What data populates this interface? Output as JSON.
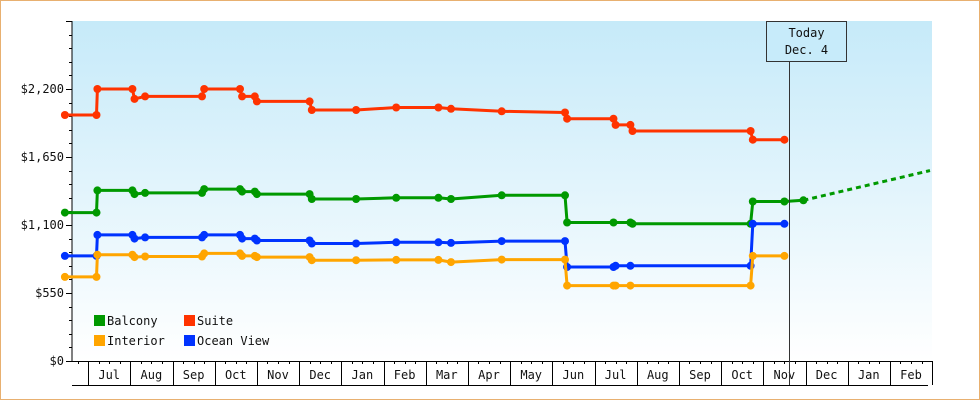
{
  "chart_data": {
    "type": "line",
    "title": "",
    "xlabel": "",
    "ylabel": "",
    "ylim": [
      0,
      2750
    ],
    "y_ticks": [
      {
        "value": 0,
        "label": "$0"
      },
      {
        "value": 550,
        "label": "$550"
      },
      {
        "value": 1100,
        "label": "$1,100"
      },
      {
        "value": 1650,
        "label": "$1,650"
      },
      {
        "value": 2200,
        "label": "$2,200"
      }
    ],
    "x_months": [
      "Jul",
      "Aug",
      "Sep",
      "Oct",
      "Nov",
      "Dec",
      "Jan",
      "Feb",
      "Mar",
      "Apr",
      "May",
      "Jun",
      "Jul",
      "Aug",
      "Sep",
      "Oct",
      "Nov",
      "Dec",
      "Jan",
      "Feb"
    ],
    "x_units": "months from start of June (0 = Jun 1)",
    "x_range": [
      -0.05,
      20.45
    ],
    "today": {
      "line1": "Today",
      "line2": "Dec. 4",
      "x": 17.1
    },
    "grid": false,
    "legend_position": "bottom-left",
    "background": {
      "top": "#c6eaf9",
      "bottom": "#ffffff"
    },
    "series": [
      {
        "name": "Suite",
        "color": "#ff3300",
        "points": [
          [
            -0.05,
            1990
          ],
          [
            0.7,
            1990
          ],
          [
            0.72,
            2200
          ],
          [
            1.55,
            2200
          ],
          [
            1.6,
            2120
          ],
          [
            1.85,
            2140
          ],
          [
            3.2,
            2140
          ],
          [
            3.25,
            2200
          ],
          [
            4.1,
            2200
          ],
          [
            4.15,
            2140
          ],
          [
            4.45,
            2140
          ],
          [
            4.5,
            2100
          ],
          [
            5.75,
            2100
          ],
          [
            5.8,
            2030
          ],
          [
            6.85,
            2030
          ],
          [
            7.8,
            2050
          ],
          [
            8.8,
            2050
          ],
          [
            9.1,
            2040
          ],
          [
            10.3,
            2020
          ],
          [
            11.8,
            2010
          ],
          [
            11.85,
            1960
          ],
          [
            12.95,
            1960
          ],
          [
            13.0,
            1910
          ],
          [
            13.35,
            1910
          ],
          [
            13.4,
            1860
          ],
          [
            16.2,
            1860
          ],
          [
            16.25,
            1790
          ],
          [
            17.0,
            1790
          ]
        ],
        "markers": [
          [
            -0.05,
            1990
          ],
          [
            0.7,
            1990
          ],
          [
            0.72,
            2200
          ],
          [
            1.55,
            2200
          ],
          [
            1.6,
            2120
          ],
          [
            1.85,
            2140
          ],
          [
            3.2,
            2140
          ],
          [
            3.25,
            2200
          ],
          [
            4.1,
            2200
          ],
          [
            4.15,
            2140
          ],
          [
            4.45,
            2140
          ],
          [
            4.5,
            2100
          ],
          [
            5.75,
            2100
          ],
          [
            5.8,
            2030
          ],
          [
            6.85,
            2030
          ],
          [
            7.8,
            2050
          ],
          [
            8.8,
            2050
          ],
          [
            9.1,
            2040
          ],
          [
            10.3,
            2020
          ],
          [
            11.8,
            2010
          ],
          [
            11.85,
            1960
          ],
          [
            12.95,
            1960
          ],
          [
            13.0,
            1910
          ],
          [
            13.35,
            1910
          ],
          [
            13.4,
            1860
          ],
          [
            16.2,
            1860
          ],
          [
            16.25,
            1790
          ],
          [
            17.0,
            1790
          ]
        ]
      },
      {
        "name": "Balcony",
        "color": "#009900",
        "points": [
          [
            -0.05,
            1200
          ],
          [
            0.7,
            1200
          ],
          [
            0.72,
            1380
          ],
          [
            1.55,
            1380
          ],
          [
            1.6,
            1350
          ],
          [
            1.85,
            1360
          ],
          [
            3.2,
            1360
          ],
          [
            3.25,
            1390
          ],
          [
            4.1,
            1390
          ],
          [
            4.15,
            1370
          ],
          [
            4.45,
            1370
          ],
          [
            4.5,
            1350
          ],
          [
            5.75,
            1350
          ],
          [
            5.8,
            1310
          ],
          [
            6.85,
            1310
          ],
          [
            7.8,
            1320
          ],
          [
            8.8,
            1320
          ],
          [
            9.1,
            1310
          ],
          [
            10.3,
            1340
          ],
          [
            11.8,
            1340
          ],
          [
            11.85,
            1120
          ],
          [
            12.95,
            1120
          ],
          [
            13.35,
            1120
          ],
          [
            13.4,
            1110
          ],
          [
            16.2,
            1110
          ],
          [
            16.25,
            1290
          ],
          [
            17.0,
            1290
          ],
          [
            17.45,
            1300
          ]
        ],
        "markers": [
          [
            -0.05,
            1200
          ],
          [
            0.7,
            1200
          ],
          [
            0.72,
            1380
          ],
          [
            1.55,
            1380
          ],
          [
            1.6,
            1350
          ],
          [
            1.85,
            1360
          ],
          [
            3.2,
            1360
          ],
          [
            3.25,
            1390
          ],
          [
            4.1,
            1390
          ],
          [
            4.15,
            1370
          ],
          [
            4.45,
            1370
          ],
          [
            4.5,
            1350
          ],
          [
            5.75,
            1350
          ],
          [
            5.8,
            1310
          ],
          [
            6.85,
            1310
          ],
          [
            7.8,
            1320
          ],
          [
            8.8,
            1320
          ],
          [
            9.1,
            1310
          ],
          [
            10.3,
            1340
          ],
          [
            11.8,
            1340
          ],
          [
            11.85,
            1120
          ],
          [
            12.95,
            1120
          ],
          [
            13.35,
            1120
          ],
          [
            13.4,
            1110
          ],
          [
            16.2,
            1110
          ],
          [
            16.25,
            1290
          ],
          [
            17.0,
            1290
          ],
          [
            17.45,
            1300
          ]
        ],
        "projection": [
          [
            17.45,
            1300
          ],
          [
            20.45,
            1540
          ]
        ]
      },
      {
        "name": "Ocean View",
        "color": "#0033ff",
        "points": [
          [
            -0.05,
            850
          ],
          [
            0.7,
            850
          ],
          [
            0.72,
            1020
          ],
          [
            1.55,
            1020
          ],
          [
            1.6,
            990
          ],
          [
            1.85,
            1000
          ],
          [
            3.2,
            1000
          ],
          [
            3.25,
            1020
          ],
          [
            4.1,
            1020
          ],
          [
            4.15,
            990
          ],
          [
            4.45,
            990
          ],
          [
            4.5,
            975
          ],
          [
            5.75,
            975
          ],
          [
            5.8,
            950
          ],
          [
            6.85,
            950
          ],
          [
            7.8,
            960
          ],
          [
            8.8,
            960
          ],
          [
            9.1,
            955
          ],
          [
            10.3,
            970
          ],
          [
            11.8,
            970
          ],
          [
            11.85,
            760
          ],
          [
            12.95,
            760
          ],
          [
            13.0,
            770
          ],
          [
            13.35,
            770
          ],
          [
            16.2,
            770
          ],
          [
            16.25,
            1110
          ],
          [
            17.0,
            1110
          ]
        ],
        "markers": [
          [
            -0.05,
            850
          ],
          [
            0.7,
            850
          ],
          [
            0.72,
            1020
          ],
          [
            1.55,
            1020
          ],
          [
            1.6,
            990
          ],
          [
            1.85,
            1000
          ],
          [
            3.2,
            1000
          ],
          [
            3.25,
            1020
          ],
          [
            4.1,
            1020
          ],
          [
            4.15,
            990
          ],
          [
            4.45,
            990
          ],
          [
            4.5,
            975
          ],
          [
            5.75,
            975
          ],
          [
            5.8,
            950
          ],
          [
            6.85,
            950
          ],
          [
            7.8,
            960
          ],
          [
            8.8,
            960
          ],
          [
            9.1,
            955
          ],
          [
            10.3,
            970
          ],
          [
            11.8,
            970
          ],
          [
            11.85,
            760
          ],
          [
            12.95,
            760
          ],
          [
            13.0,
            770
          ],
          [
            13.35,
            770
          ],
          [
            16.2,
            770
          ],
          [
            16.25,
            1110
          ],
          [
            17.0,
            1110
          ]
        ]
      },
      {
        "name": "Interior",
        "color": "#ffa500",
        "points": [
          [
            -0.05,
            680
          ],
          [
            0.7,
            680
          ],
          [
            0.72,
            860
          ],
          [
            1.55,
            860
          ],
          [
            1.6,
            840
          ],
          [
            1.85,
            845
          ],
          [
            3.2,
            845
          ],
          [
            3.25,
            870
          ],
          [
            4.1,
            870
          ],
          [
            4.15,
            850
          ],
          [
            4.45,
            850
          ],
          [
            4.5,
            840
          ],
          [
            5.75,
            840
          ],
          [
            5.8,
            815
          ],
          [
            6.85,
            815
          ],
          [
            7.8,
            818
          ],
          [
            8.8,
            818
          ],
          [
            9.1,
            800
          ],
          [
            10.3,
            820
          ],
          [
            11.8,
            820
          ],
          [
            11.85,
            610
          ],
          [
            12.95,
            610
          ],
          [
            13.0,
            610
          ],
          [
            13.35,
            610
          ],
          [
            16.2,
            610
          ],
          [
            16.25,
            850
          ],
          [
            17.0,
            850
          ]
        ],
        "markers": [
          [
            -0.05,
            680
          ],
          [
            0.7,
            680
          ],
          [
            0.72,
            860
          ],
          [
            1.55,
            860
          ],
          [
            1.6,
            840
          ],
          [
            1.85,
            845
          ],
          [
            3.2,
            845
          ],
          [
            3.25,
            870
          ],
          [
            4.1,
            870
          ],
          [
            4.15,
            850
          ],
          [
            4.45,
            850
          ],
          [
            4.5,
            840
          ],
          [
            5.75,
            840
          ],
          [
            5.8,
            815
          ],
          [
            6.85,
            815
          ],
          [
            7.8,
            818
          ],
          [
            8.8,
            818
          ],
          [
            9.1,
            800
          ],
          [
            10.3,
            820
          ],
          [
            11.8,
            820
          ],
          [
            11.85,
            610
          ],
          [
            12.95,
            610
          ],
          [
            13.0,
            610
          ],
          [
            13.35,
            610
          ],
          [
            16.2,
            610
          ],
          [
            16.25,
            850
          ],
          [
            17.0,
            850
          ]
        ]
      }
    ],
    "legend": [
      {
        "name": "Balcony",
        "color": "#009900"
      },
      {
        "name": "Suite",
        "color": "#ff3300"
      },
      {
        "name": "Interior",
        "color": "#ffa500"
      },
      {
        "name": "Ocean View",
        "color": "#0033ff"
      }
    ]
  }
}
